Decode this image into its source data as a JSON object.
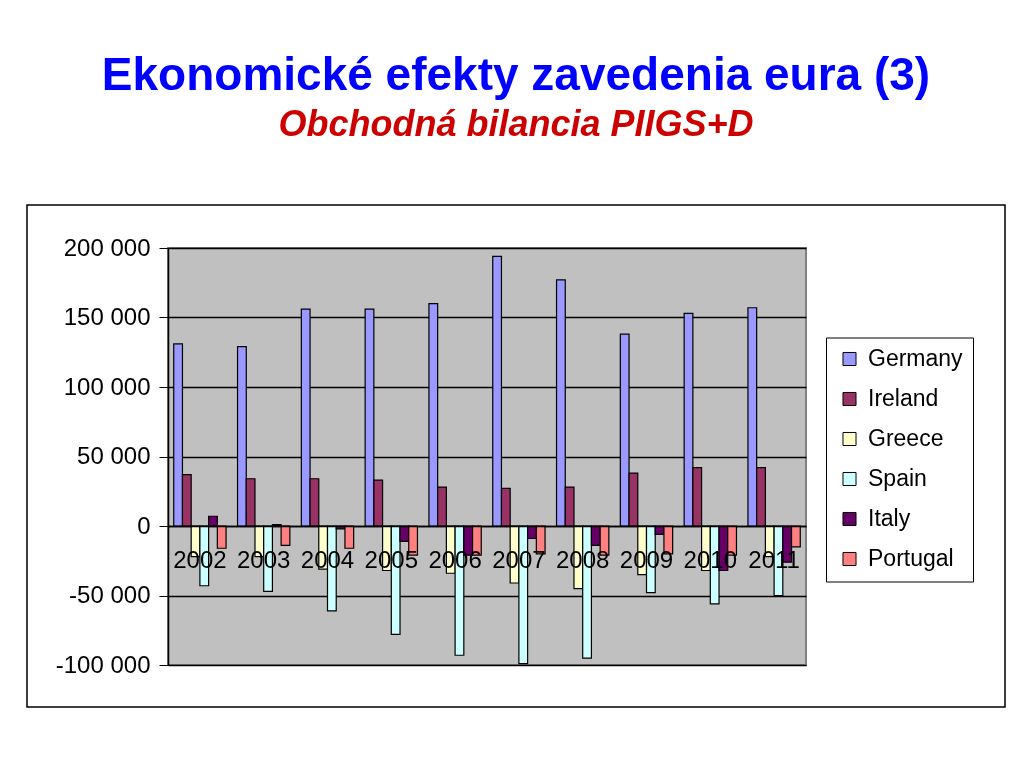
{
  "chart_data": {
    "type": "bar",
    "title": "Ekonomické efekty zavedenia eura (3)",
    "subtitle": "Obchodná bilancia PIIGS+D",
    "categories": [
      "2002",
      "2003",
      "2004",
      "2005",
      "2006",
      "2007",
      "2008",
      "2009",
      "2010",
      "2011"
    ],
    "series": [
      {
        "name": "Germany",
        "color": "#9999ff",
        "values": [
          131000,
          129000,
          156000,
          156000,
          160000,
          194000,
          177000,
          138000,
          153000,
          157000
        ]
      },
      {
        "name": "Ireland",
        "color": "#993366",
        "values": [
          37000,
          34000,
          34000,
          33000,
          28000,
          27000,
          28000,
          38000,
          42000,
          42000
        ]
      },
      {
        "name": "Greece",
        "color": "#ffffcc",
        "values": [
          -22000,
          -22000,
          -31000,
          -32000,
          -34000,
          -41000,
          -45000,
          -35000,
          -32000,
          -22000
        ]
      },
      {
        "name": "Spain",
        "color": "#ccffff",
        "values": [
          -43000,
          -47000,
          -61000,
          -78000,
          -93000,
          -99000,
          -95000,
          -48000,
          -56000,
          -50000
        ]
      },
      {
        "name": "Italy",
        "color": "#660066",
        "values": [
          7000,
          1000,
          -2000,
          -11000,
          -21000,
          -9000,
          -14000,
          -6000,
          -32000,
          -26000
        ]
      },
      {
        "name": "Portugal",
        "color": "#ff8080",
        "values": [
          -16000,
          -14000,
          -16000,
          -21000,
          -21000,
          -20000,
          -21000,
          -20000,
          -21000,
          -15000
        ]
      }
    ],
    "ylim": [
      -100000,
      200000
    ],
    "yticks": [
      {
        "value": -100000,
        "label": "-100 000"
      },
      {
        "value": -50000,
        "label": "-50 000"
      },
      0,
      {
        "value": 50000,
        "label": "50 000"
      },
      {
        "value": 100000,
        "label": "100 000"
      },
      {
        "value": 150000,
        "label": "150 000"
      },
      {
        "value": 200000,
        "label": "200 000"
      }
    ],
    "grid": "y",
    "legend": "right"
  }
}
